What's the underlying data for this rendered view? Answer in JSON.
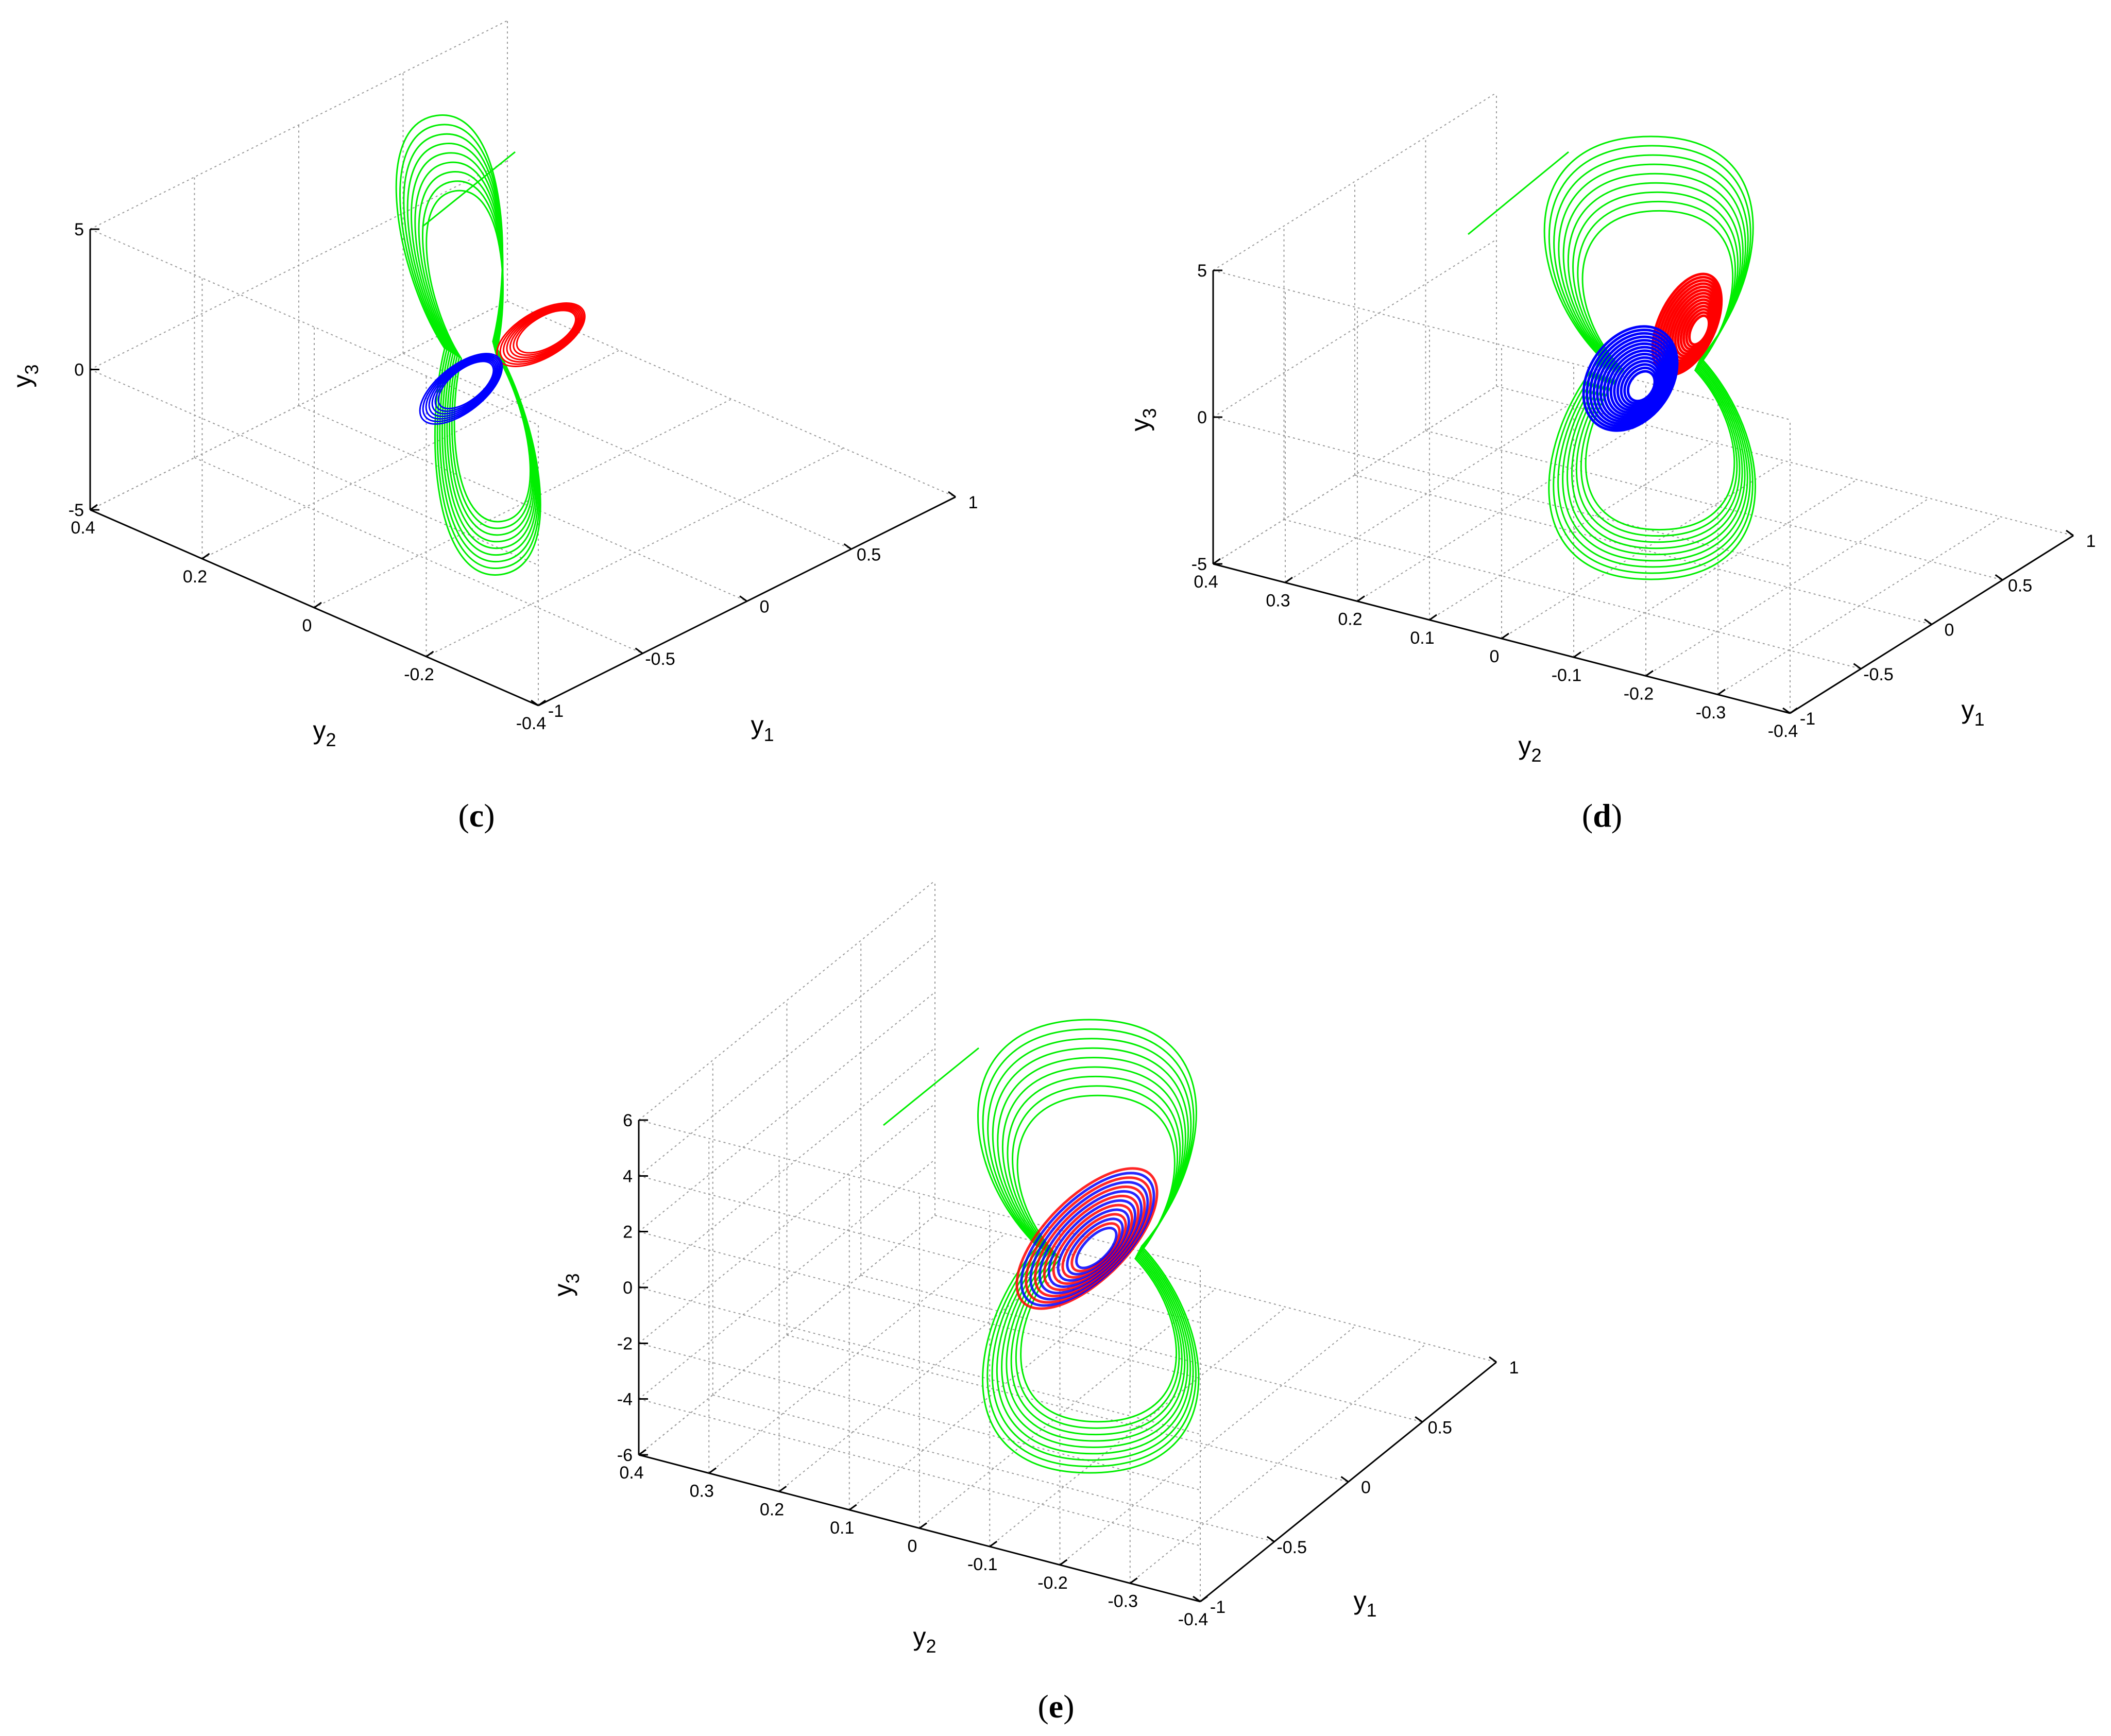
{
  "chart_data": [
    {
      "type": "line3d",
      "panel": "c",
      "caption_open": "(",
      "caption_letter": "c",
      "caption_close": ")",
      "xlabel": "y",
      "xlabel_sub": "1",
      "ylabel": "y",
      "ylabel_sub": "2",
      "zlabel": "y",
      "zlabel_sub": "3",
      "xlim": [
        -1,
        1
      ],
      "ylim": [
        -0.4,
        0.4
      ],
      "zlim": [
        -5,
        5
      ],
      "xticks": [
        "-1",
        "-0.5",
        "0",
        "0.5",
        "1"
      ],
      "yticks": [
        "0.4",
        "0.2",
        "0",
        "-0.2",
        "-0.4"
      ],
      "zticks": [
        "5",
        "0",
        "-5"
      ],
      "grid": true,
      "series_colors": {
        "transient": "#00ee00",
        "attractor_1": "#ff0000",
        "attractor_2": "#0000ff"
      },
      "features": {
        "transient_tail": true,
        "split_attractors": true,
        "mixed": false
      }
    },
    {
      "type": "line3d",
      "panel": "d",
      "caption_open": "(",
      "caption_letter": "d",
      "caption_close": ")",
      "xlabel": "y",
      "xlabel_sub": "1",
      "ylabel": "y",
      "ylabel_sub": "2",
      "zlabel": "y",
      "zlabel_sub": "3",
      "xlim": [
        -1,
        1
      ],
      "ylim": [
        -0.4,
        0.4
      ],
      "zlim": [
        -5,
        5
      ],
      "xticks": [
        "-1",
        "-0.5",
        "0",
        "0.5",
        "1"
      ],
      "yticks": [
        "0.4",
        "0.3",
        "0.2",
        "0.1",
        "0",
        "-0.1",
        "-0.2",
        "-0.3",
        "-0.4"
      ],
      "zticks": [
        "5",
        "0",
        "-5"
      ],
      "grid": true,
      "series_colors": {
        "transient": "#00ee00",
        "attractor_1": "#ff0000",
        "attractor_2": "#0000ff"
      },
      "features": {
        "transient_tail": true,
        "split_attractors": false,
        "mixed": false
      }
    },
    {
      "type": "line3d",
      "panel": "e",
      "caption_open": "(",
      "caption_letter": "e",
      "caption_close": ")",
      "xlabel": "y",
      "xlabel_sub": "1",
      "ylabel": "y",
      "ylabel_sub": "2",
      "zlabel": "y",
      "zlabel_sub": "3",
      "xlim": [
        -1,
        1
      ],
      "ylim": [
        -0.4,
        0.4
      ],
      "zlim": [
        -6,
        6
      ],
      "xticks": [
        "-1",
        "-0.5",
        "0",
        "0.5",
        "1"
      ],
      "yticks": [
        "0.4",
        "0.3",
        "0.2",
        "0.1",
        "0",
        "-0.1",
        "-0.2",
        "-0.3",
        "-0.4"
      ],
      "zticks": [
        "6",
        "4",
        "2",
        "0",
        "-2",
        "-4",
        "-6"
      ],
      "grid": true,
      "series_colors": {
        "transient": "#00ee00",
        "attractor_1": "#ff0000",
        "attractor_2": "#0000ff"
      },
      "features": {
        "transient_tail": true,
        "split_attractors": false,
        "mixed": true
      }
    }
  ]
}
